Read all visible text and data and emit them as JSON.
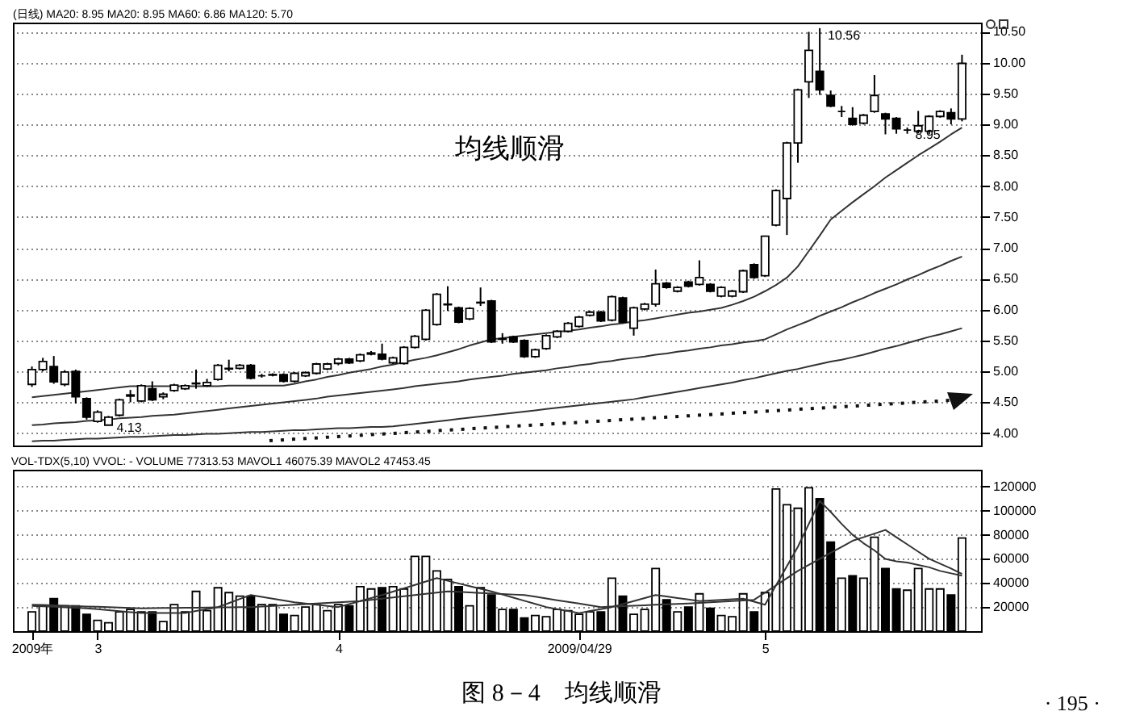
{
  "chart_data": [
    {
      "type": "candlestick",
      "title": "(日线) MA20: 8.95 MA20: 8.95 MA60: 6.86 MA120: 5.70",
      "categories": [
        null,
        null,
        null,
        null,
        null,
        null,
        null,
        null,
        null,
        null,
        null,
        null,
        null,
        null,
        null,
        null,
        null,
        null,
        null,
        null,
        null,
        null,
        null,
        null,
        null,
        null,
        null,
        null,
        null,
        null,
        null,
        null,
        null,
        null,
        null,
        null,
        null,
        null,
        null,
        null,
        null,
        null,
        null,
        null,
        null,
        null,
        null,
        null,
        null,
        null,
        null,
        null,
        null,
        null,
        null,
        null,
        null,
        null,
        null,
        null,
        null,
        null,
        null,
        null,
        null,
        null,
        null,
        null,
        null,
        null,
        null,
        null,
        null,
        null,
        null,
        null,
        null,
        null,
        null,
        null,
        null,
        null,
        null,
        null,
        null,
        null
      ],
      "ohlc": [
        [
          4.79,
          5.08,
          4.75,
          5.03
        ],
        [
          5.03,
          5.22,
          5.0,
          5.16
        ],
        [
          5.08,
          5.25,
          4.8,
          4.83
        ],
        [
          4.79,
          5.02,
          4.76,
          4.99
        ],
        [
          5.0,
          5.03,
          4.48,
          4.59
        ],
        [
          4.56,
          4.58,
          4.22,
          4.26
        ],
        [
          4.19,
          4.37,
          4.17,
          4.34
        ],
        [
          4.13,
          4.28,
          4.13,
          4.26
        ],
        [
          4.29,
          4.56,
          4.27,
          4.54
        ],
        [
          4.6,
          4.7,
          4.5,
          4.62
        ],
        [
          4.52,
          4.79,
          4.5,
          4.77
        ],
        [
          4.72,
          4.84,
          4.52,
          4.54
        ],
        [
          4.59,
          4.66,
          4.55,
          4.63
        ],
        [
          4.69,
          4.8,
          4.67,
          4.78
        ],
        [
          4.72,
          4.79,
          4.7,
          4.77
        ],
        [
          4.8,
          5.03,
          4.72,
          4.81
        ],
        [
          4.77,
          4.88,
          4.75,
          4.82
        ],
        [
          4.87,
          5.12,
          4.85,
          5.1
        ],
        [
          5.04,
          5.19,
          5.0,
          5.05
        ],
        [
          5.05,
          5.12,
          5.03,
          5.1
        ],
        [
          5.1,
          5.12,
          4.87,
          4.89
        ],
        [
          4.93,
          4.96,
          4.9,
          4.93
        ],
        [
          4.94,
          4.97,
          4.92,
          4.95
        ],
        [
          4.95,
          4.97,
          4.82,
          4.84
        ],
        [
          4.84,
          4.99,
          4.82,
          4.97
        ],
        [
          4.93,
          5.0,
          4.91,
          4.98
        ],
        [
          4.97,
          5.14,
          4.95,
          5.12
        ],
        [
          5.04,
          5.14,
          5.02,
          5.12
        ],
        [
          5.13,
          5.22,
          5.1,
          5.2
        ],
        [
          5.2,
          5.22,
          5.12,
          5.14
        ],
        [
          5.17,
          5.29,
          5.15,
          5.27
        ],
        [
          5.3,
          5.33,
          5.26,
          5.28
        ],
        [
          5.28,
          5.45,
          5.18,
          5.2
        ],
        [
          5.14,
          5.24,
          5.12,
          5.22
        ],
        [
          5.13,
          5.41,
          5.11,
          5.39
        ],
        [
          5.39,
          5.59,
          5.37,
          5.57
        ],
        [
          5.52,
          6.01,
          5.5,
          5.99
        ],
        [
          5.76,
          6.27,
          5.74,
          6.25
        ],
        [
          6.08,
          6.38,
          5.98,
          6.09
        ],
        [
          6.03,
          6.05,
          5.78,
          5.8
        ],
        [
          5.85,
          6.04,
          5.83,
          6.02
        ],
        [
          6.11,
          6.36,
          6.06,
          6.12
        ],
        [
          6.14,
          6.16,
          5.46,
          5.48
        ],
        [
          5.52,
          5.62,
          5.45,
          5.53
        ],
        [
          5.56,
          5.58,
          5.46,
          5.48
        ],
        [
          5.5,
          5.52,
          5.22,
          5.24
        ],
        [
          5.24,
          5.37,
          5.22,
          5.35
        ],
        [
          5.37,
          5.6,
          5.35,
          5.58
        ],
        [
          5.56,
          5.67,
          5.54,
          5.65
        ],
        [
          5.65,
          5.8,
          5.63,
          5.78
        ],
        [
          5.73,
          5.9,
          5.71,
          5.88
        ],
        [
          5.91,
          5.98,
          5.89,
          5.96
        ],
        [
          5.96,
          5.98,
          5.8,
          5.82
        ],
        [
          5.83,
          6.23,
          5.81,
          6.21
        ],
        [
          6.19,
          6.21,
          5.78,
          5.8
        ],
        [
          5.7,
          6.05,
          5.58,
          6.03
        ],
        [
          6.01,
          6.11,
          5.99,
          6.09
        ],
        [
          6.09,
          6.65,
          6.05,
          6.42
        ],
        [
          6.43,
          6.45,
          6.34,
          6.36
        ],
        [
          6.3,
          6.38,
          6.28,
          6.36
        ],
        [
          6.45,
          6.47,
          6.36,
          6.38
        ],
        [
          6.41,
          6.8,
          6.39,
          6.52
        ],
        [
          6.41,
          6.43,
          6.28,
          6.3
        ],
        [
          6.22,
          6.38,
          6.2,
          6.36
        ],
        [
          6.22,
          6.32,
          6.2,
          6.3
        ],
        [
          6.29,
          6.65,
          6.27,
          6.63
        ],
        [
          6.73,
          6.75,
          6.5,
          6.52
        ],
        [
          6.55,
          7.2,
          6.53,
          7.19
        ],
        [
          7.37,
          7.95,
          7.35,
          7.93
        ],
        [
          7.8,
          8.72,
          7.21,
          8.7
        ],
        [
          8.7,
          9.58,
          8.38,
          9.56
        ],
        [
          9.69,
          10.5,
          9.43,
          10.2
        ],
        [
          9.86,
          10.56,
          9.48,
          9.56
        ],
        [
          9.47,
          9.55,
          9.28,
          9.3
        ],
        [
          9.21,
          9.3,
          9.12,
          9.21
        ],
        [
          9.1,
          9.28,
          8.98,
          9.0
        ],
        [
          9.02,
          9.17,
          9.0,
          9.15
        ],
        [
          9.21,
          9.8,
          9.19,
          9.47
        ],
        [
          9.17,
          9.19,
          8.84,
          9.09
        ],
        [
          9.1,
          9.12,
          8.85,
          8.93
        ],
        [
          8.91,
          8.95,
          8.85,
          8.91
        ],
        [
          8.89,
          9.22,
          8.86,
          8.98
        ],
        [
          8.89,
          9.15,
          8.84,
          9.13
        ],
        [
          9.13,
          9.23,
          9.11,
          9.21
        ],
        [
          9.19,
          9.26,
          9.0,
          9.09
        ],
        [
          9.09,
          10.13,
          9.05,
          9.99
        ]
      ],
      "series": [
        {
          "type": "line",
          "color": "#333333",
          "values": [
            4.58,
            4.6,
            4.62,
            4.64,
            4.66,
            4.68,
            4.7,
            4.72,
            4.74,
            4.76,
            4.76,
            4.76,
            4.76,
            4.76,
            4.76,
            4.76,
            4.76,
            4.76,
            4.77,
            4.77,
            4.77,
            4.77,
            4.77,
            4.77,
            4.8,
            4.84,
            4.87,
            4.91,
            4.94,
            4.98,
            5.01,
            5.04,
            5.08,
            5.11,
            5.15,
            5.19,
            5.22,
            5.26,
            5.31,
            5.36,
            5.42,
            5.47,
            5.52,
            5.54,
            5.56,
            5.58,
            5.6,
            5.62,
            5.64,
            5.66,
            5.68,
            5.71,
            5.73,
            5.76,
            5.78,
            5.81,
            5.83,
            5.86,
            5.89,
            5.92,
            5.95,
            5.97,
            6.0,
            6.03,
            6.08,
            6.14,
            6.21,
            6.3,
            6.4,
            6.52,
            6.7,
            6.95,
            7.2,
            7.46,
            7.6,
            7.74,
            7.87,
            8.0,
            8.14,
            8.26,
            8.38,
            8.5,
            8.61,
            8.72,
            8.84,
            8.95
          ]
        },
        {
          "type": "line",
          "color": "#333333",
          "values": [
            4.13,
            4.14,
            4.16,
            4.17,
            4.18,
            4.2,
            4.21,
            4.22,
            4.24,
            4.25,
            4.26,
            4.28,
            4.29,
            4.3,
            4.32,
            4.34,
            4.36,
            4.38,
            4.4,
            4.42,
            4.44,
            4.46,
            4.48,
            4.5,
            4.52,
            4.54,
            4.56,
            4.59,
            4.61,
            4.63,
            4.65,
            4.67,
            4.69,
            4.71,
            4.73,
            4.76,
            4.78,
            4.8,
            4.82,
            4.84,
            4.87,
            4.89,
            4.91,
            4.93,
            4.96,
            4.98,
            5.0,
            5.02,
            5.05,
            5.07,
            5.1,
            5.12,
            5.15,
            5.17,
            5.2,
            5.22,
            5.24,
            5.27,
            5.29,
            5.32,
            5.34,
            5.37,
            5.39,
            5.42,
            5.44,
            5.47,
            5.49,
            5.52,
            5.6,
            5.68,
            5.75,
            5.82,
            5.9,
            5.97,
            6.04,
            6.12,
            6.19,
            6.27,
            6.34,
            6.41,
            6.49,
            6.56,
            6.64,
            6.71,
            6.79,
            6.86
          ]
        },
        {
          "type": "line",
          "color": "#333333",
          "values": [
            3.87,
            3.88,
            3.88,
            3.89,
            3.9,
            3.91,
            3.91,
            3.92,
            3.93,
            3.94,
            3.94,
            3.95,
            3.96,
            3.97,
            3.97,
            3.98,
            3.99,
            3.99,
            4.0,
            4.01,
            4.02,
            4.02,
            4.03,
            4.04,
            4.05,
            4.05,
            4.06,
            4.07,
            4.08,
            4.08,
            4.09,
            4.1,
            4.1,
            4.11,
            4.13,
            4.15,
            4.17,
            4.19,
            4.21,
            4.23,
            4.25,
            4.27,
            4.29,
            4.31,
            4.33,
            4.35,
            4.37,
            4.39,
            4.41,
            4.43,
            4.45,
            4.47,
            4.49,
            4.51,
            4.53,
            4.55,
            4.58,
            4.61,
            4.64,
            4.67,
            4.7,
            4.73,
            4.76,
            4.79,
            4.82,
            4.86,
            4.89,
            4.93,
            4.97,
            5.01,
            5.04,
            5.08,
            5.12,
            5.16,
            5.19,
            5.23,
            5.27,
            5.32,
            5.37,
            5.41,
            5.46,
            5.51,
            5.56,
            5.6,
            5.65,
            5.7
          ]
        }
      ],
      "ylim": [
        3.8,
        10.65
      ],
      "yticks": [
        {
          "value": 4,
          "label": "4.00"
        },
        {
          "value": 4.5,
          "label": "4.50"
        },
        {
          "value": 5,
          "label": "5.00"
        },
        {
          "value": 5.5,
          "label": "5.50"
        },
        {
          "value": 6,
          "label": "6.00"
        },
        {
          "value": 6.5,
          "label": "6.50"
        },
        {
          "value": 7,
          "label": "7.00"
        },
        {
          "value": 7.5,
          "label": "7.50"
        },
        {
          "value": 8,
          "label": "8.00"
        },
        {
          "value": 8.5,
          "label": "8.50"
        },
        {
          "value": 9,
          "label": "9.00"
        },
        {
          "value": 9.5,
          "label": "9.50"
        },
        {
          "value": 10,
          "label": "10.00"
        },
        {
          "value": 10.5,
          "label": "10.50"
        }
      ],
      "grid": "y",
      "annotations": [
        "均线顺滑",
        "10.56",
        {
          "text": "4.13",
          "y": 4.13
        },
        {
          "text": "8.95",
          "y": 8.95
        }
      ]
    },
    {
      "type": "bar",
      "title": "VOL-TDX(5,10) VVOL: - VOLUME 77313.53 MAVOL1 46075.39 MAVOL2 47453.45",
      "categories": [
        "2009年",
        null,
        null,
        null,
        null,
        null,
        "3",
        null,
        null,
        null,
        null,
        null,
        null,
        null,
        null,
        null,
        null,
        null,
        null,
        null,
        null,
        null,
        null,
        null,
        null,
        null,
        null,
        null,
        "4",
        null,
        null,
        null,
        null,
        null,
        null,
        null,
        null,
        null,
        null,
        null,
        null,
        null,
        null,
        null,
        null,
        null,
        null,
        null,
        null,
        null,
        "2009/04/29",
        null,
        null,
        null,
        null,
        null,
        null,
        null,
        null,
        null,
        null,
        null,
        null,
        null,
        null,
        null,
        null,
        "5",
        null,
        null,
        null,
        null,
        null,
        null,
        null,
        null,
        null,
        null,
        null,
        null,
        null,
        null,
        null,
        null,
        null,
        null
      ],
      "series": [
        {
          "type": "bar",
          "values": [
            16000,
            21000,
            27000,
            21000,
            21000,
            14000,
            9000,
            7000,
            16000,
            18000,
            16000,
            16000,
            8000,
            22000,
            16000,
            33000,
            17000,
            36000,
            32000,
            29000,
            29000,
            22000,
            22000,
            14000,
            13000,
            20000,
            22000,
            17000,
            22000,
            21000,
            37000,
            35000,
            36000,
            37000,
            35000,
            62000,
            62000,
            50000,
            43000,
            37000,
            21000,
            36000,
            30000,
            18000,
            18000,
            11000,
            13000,
            12000,
            18000,
            17000,
            14000,
            16000,
            16000,
            44000,
            29000,
            14000,
            18000,
            52000,
            26000,
            16000,
            20000,
            31000,
            19000,
            13000,
            12000,
            31000,
            16000,
            32000,
            118000,
            105000,
            102000,
            119000,
            110000,
            74000,
            44000,
            46000,
            44000,
            78000,
            52000,
            35000,
            34000,
            52000,
            35000,
            35000,
            30000,
            77313.53
          ],
          "colors": [
            "#ffffff",
            "#ffffff",
            "#000000",
            "#ffffff",
            "#000000",
            "#000000",
            "#ffffff",
            "#ffffff",
            "#ffffff",
            "#ffffff",
            "#ffffff",
            "#000000",
            "#ffffff",
            "#ffffff",
            "#ffffff",
            "#ffffff",
            "#ffffff",
            "#ffffff",
            "#ffffff",
            "#ffffff",
            "#000000",
            "#ffffff",
            "#ffffff",
            "#000000",
            "#ffffff",
            "#ffffff",
            "#ffffff",
            "#ffffff",
            "#ffffff",
            "#000000",
            "#ffffff",
            "#ffffff",
            "#000000",
            "#ffffff",
            "#ffffff",
            "#ffffff",
            "#ffffff",
            "#ffffff",
            "#ffffff",
            "#000000",
            "#ffffff",
            "#ffffff",
            "#000000",
            "#ffffff",
            "#000000",
            "#000000",
            "#ffffff",
            "#ffffff",
            "#ffffff",
            "#ffffff",
            "#ffffff",
            "#ffffff",
            "#000000",
            "#ffffff",
            "#000000",
            "#ffffff",
            "#ffffff",
            "#ffffff",
            "#000000",
            "#ffffff",
            "#000000",
            "#ffffff",
            "#000000",
            "#ffffff",
            "#ffffff",
            "#ffffff",
            "#000000",
            "#ffffff",
            "#ffffff",
            "#ffffff",
            "#ffffff",
            "#ffffff",
            "#000000",
            "#000000",
            "#ffffff",
            "#000000",
            "#ffffff",
            "#ffffff",
            "#000000",
            "#000000",
            "#ffffff",
            "#ffffff",
            "#ffffff",
            "#ffffff",
            "#000000",
            "#ffffff"
          ]
        },
        {
          "type": "line",
          "color": "#333333",
          "values": [
            21000,
            20600,
            20200,
            19800,
            19400,
            19000,
            18200,
            17400,
            16600,
            15800,
            15000,
            15000,
            15000,
            15000,
            15000,
            16700,
            18300,
            20000,
            23300,
            26700,
            30000,
            28500,
            27000,
            25500,
            24000,
            23000,
            22000,
            21000,
            20000,
            22500,
            25000,
            27500,
            30000,
            32800,
            35600,
            38400,
            41200,
            44000,
            41800,
            39600,
            37400,
            35200,
            33000,
            30400,
            27800,
            25200,
            22600,
            20000,
            18300,
            16700,
            15000,
            16700,
            18300,
            20000,
            22500,
            25000,
            27500,
            30000,
            28800,
            27500,
            26300,
            25000,
            25500,
            26000,
            26500,
            27000,
            24500,
            22000,
            38000,
            54000,
            70000,
            89000,
            108000,
            99000,
            89000,
            80000,
            73000,
            67000,
            60000,
            58000,
            57000,
            55000,
            53000,
            50000,
            48000,
            46075.39
          ]
        },
        {
          "type": "line",
          "color": "#333333",
          "values": [
            22000,
            21700,
            21400,
            21100,
            20800,
            20500,
            20200,
            19900,
            19600,
            19300,
            19000,
            19100,
            19200,
            19300,
            19400,
            19500,
            19600,
            19700,
            19800,
            19900,
            20000,
            20500,
            21000,
            21500,
            22000,
            22500,
            23000,
            23500,
            24000,
            24500,
            25000,
            26000,
            27000,
            28000,
            29000,
            30000,
            31000,
            32000,
            33000,
            32600,
            32100,
            31700,
            31300,
            30900,
            30400,
            30000,
            28600,
            27100,
            25700,
            24300,
            22900,
            21400,
            20000,
            20400,
            20800,
            21100,
            21500,
            21900,
            22300,
            22600,
            23000,
            23500,
            24000,
            24500,
            25000,
            25500,
            26000,
            32000,
            38000,
            44000,
            50000,
            55000,
            60000,
            65000,
            70000,
            75000,
            78000,
            81000,
            84000,
            78000,
            72000,
            66000,
            60000,
            56000,
            52000,
            47453.45
          ]
        }
      ],
      "ylim": [
        0,
        134000
      ],
      "yticks": [
        20000,
        40000,
        60000,
        80000,
        100000,
        120000
      ],
      "grid": "y",
      "annotations": [
        "图 8－4　均线顺滑",
        "· 195 ·"
      ]
    }
  ]
}
